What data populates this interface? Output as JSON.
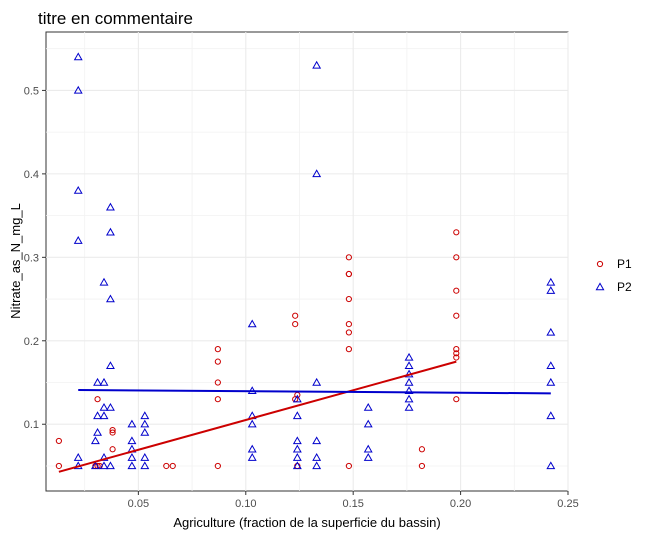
{
  "chart_data": {
    "type": "scatter",
    "title": "titre en commentaire",
    "xlabel": "Agriculture (fraction de la superficie du bassin)",
    "ylabel": "Nitrate_as_N_mg_L",
    "xlim": [
      0.007,
      0.25
    ],
    "ylim": [
      0.02,
      0.57
    ],
    "x_ticks": [
      0.05,
      0.1,
      0.15,
      0.2,
      0.25
    ],
    "x_tick_labels": [
      "0.05",
      "0.10",
      "0.15",
      "0.20",
      "0.25"
    ],
    "y_ticks": [
      0.1,
      0.2,
      0.3,
      0.4,
      0.5
    ],
    "y_tick_labels": [
      "0.1",
      "0.2",
      "0.3",
      "0.4",
      "0.5"
    ],
    "grid": true,
    "legend_position": "right",
    "series": [
      {
        "name": "P1",
        "marker": "circle",
        "color": "#cc0000",
        "points": [
          [
            0.013,
            0.08
          ],
          [
            0.013,
            0.05
          ],
          [
            0.03,
            0.05
          ],
          [
            0.031,
            0.05
          ],
          [
            0.032,
            0.05
          ],
          [
            0.031,
            0.13
          ],
          [
            0.038,
            0.093
          ],
          [
            0.038,
            0.09
          ],
          [
            0.038,
            0.07
          ],
          [
            0.063,
            0.05
          ],
          [
            0.066,
            0.05
          ],
          [
            0.087,
            0.19
          ],
          [
            0.087,
            0.175
          ],
          [
            0.087,
            0.15
          ],
          [
            0.087,
            0.13
          ],
          [
            0.087,
            0.05
          ],
          [
            0.123,
            0.23
          ],
          [
            0.123,
            0.22
          ],
          [
            0.123,
            0.13
          ],
          [
            0.124,
            0.135
          ],
          [
            0.124,
            0.05
          ],
          [
            0.148,
            0.3
          ],
          [
            0.148,
            0.28
          ],
          [
            0.148,
            0.28
          ],
          [
            0.148,
            0.25
          ],
          [
            0.148,
            0.22
          ],
          [
            0.148,
            0.21
          ],
          [
            0.148,
            0.19
          ],
          [
            0.148,
            0.05
          ],
          [
            0.182,
            0.07
          ],
          [
            0.182,
            0.05
          ],
          [
            0.198,
            0.33
          ],
          [
            0.198,
            0.3
          ],
          [
            0.198,
            0.26
          ],
          [
            0.198,
            0.23
          ],
          [
            0.198,
            0.19
          ],
          [
            0.198,
            0.185
          ],
          [
            0.198,
            0.18
          ],
          [
            0.198,
            0.13
          ]
        ],
        "trend": [
          [
            0.013,
            0.043
          ],
          [
            0.198,
            0.175
          ]
        ]
      },
      {
        "name": "P2",
        "marker": "triangle",
        "color": "#0000cc",
        "points": [
          [
            0.022,
            0.54
          ],
          [
            0.022,
            0.5
          ],
          [
            0.022,
            0.38
          ],
          [
            0.022,
            0.32
          ],
          [
            0.022,
            0.06
          ],
          [
            0.022,
            0.05
          ],
          [
            0.03,
            0.08
          ],
          [
            0.03,
            0.05
          ],
          [
            0.031,
            0.15
          ],
          [
            0.031,
            0.11
          ],
          [
            0.031,
            0.09
          ],
          [
            0.034,
            0.27
          ],
          [
            0.034,
            0.15
          ],
          [
            0.034,
            0.12
          ],
          [
            0.034,
            0.11
          ],
          [
            0.034,
            0.06
          ],
          [
            0.034,
            0.05
          ],
          [
            0.037,
            0.36
          ],
          [
            0.037,
            0.33
          ],
          [
            0.037,
            0.25
          ],
          [
            0.037,
            0.17
          ],
          [
            0.037,
            0.12
          ],
          [
            0.037,
            0.05
          ],
          [
            0.047,
            0.1
          ],
          [
            0.047,
            0.08
          ],
          [
            0.047,
            0.07
          ],
          [
            0.047,
            0.06
          ],
          [
            0.047,
            0.05
          ],
          [
            0.053,
            0.11
          ],
          [
            0.053,
            0.1
          ],
          [
            0.053,
            0.09
          ],
          [
            0.053,
            0.06
          ],
          [
            0.053,
            0.05
          ],
          [
            0.103,
            0.22
          ],
          [
            0.103,
            0.14
          ],
          [
            0.103,
            0.11
          ],
          [
            0.103,
            0.1
          ],
          [
            0.103,
            0.07
          ],
          [
            0.103,
            0.06
          ],
          [
            0.124,
            0.13
          ],
          [
            0.124,
            0.11
          ],
          [
            0.124,
            0.08
          ],
          [
            0.124,
            0.07
          ],
          [
            0.124,
            0.06
          ],
          [
            0.124,
            0.05
          ],
          [
            0.133,
            0.53
          ],
          [
            0.133,
            0.4
          ],
          [
            0.133,
            0.15
          ],
          [
            0.133,
            0.08
          ],
          [
            0.133,
            0.06
          ],
          [
            0.133,
            0.05
          ],
          [
            0.157,
            0.12
          ],
          [
            0.157,
            0.1
          ],
          [
            0.157,
            0.07
          ],
          [
            0.157,
            0.06
          ],
          [
            0.176,
            0.18
          ],
          [
            0.176,
            0.17
          ],
          [
            0.176,
            0.16
          ],
          [
            0.176,
            0.15
          ],
          [
            0.176,
            0.14
          ],
          [
            0.176,
            0.13
          ],
          [
            0.176,
            0.12
          ],
          [
            0.242,
            0.27
          ],
          [
            0.242,
            0.26
          ],
          [
            0.242,
            0.21
          ],
          [
            0.242,
            0.17
          ],
          [
            0.242,
            0.15
          ],
          [
            0.242,
            0.11
          ],
          [
            0.242,
            0.05
          ]
        ],
        "trend": [
          [
            0.022,
            0.141
          ],
          [
            0.242,
            0.137
          ]
        ]
      }
    ]
  }
}
